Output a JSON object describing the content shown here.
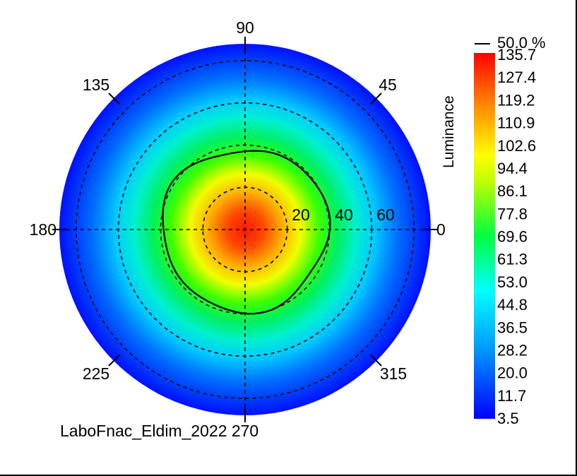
{
  "chart_data": {
    "type": "heatmap",
    "subtype": "polar-conoscope",
    "quantity": "Luminance",
    "angle_labels": [
      "0",
      "45",
      "90",
      "135",
      "180",
      "225",
      "270",
      "315"
    ],
    "radius_labels": [
      "20",
      "40",
      "60"
    ],
    "radius_rings": [
      20,
      40,
      60,
      80
    ],
    "colorbar_ticks": [
      "135.7",
      "127.4",
      "119.2",
      "110.9",
      "102.6",
      "94.4",
      "86.1",
      "77.8",
      "69.6",
      "61.3",
      "53.0",
      "44.8",
      "36.5",
      "28.2",
      "20.0",
      "11.7",
      "3.5"
    ],
    "color_range": [
      3.5,
      135.7
    ],
    "contour_label": "50.0 %",
    "contour_value_percent": 50.0,
    "contour_radius_deg": 40,
    "peak_value": 135.7,
    "min_value": 3.5,
    "caption": "LaboFnac_Eldim_2022",
    "colormap": [
      "#ff0000",
      "#ff8000",
      "#ffff00",
      "#00ff00",
      "#00ffff",
      "#0000ff"
    ],
    "grid": "dashed"
  }
}
